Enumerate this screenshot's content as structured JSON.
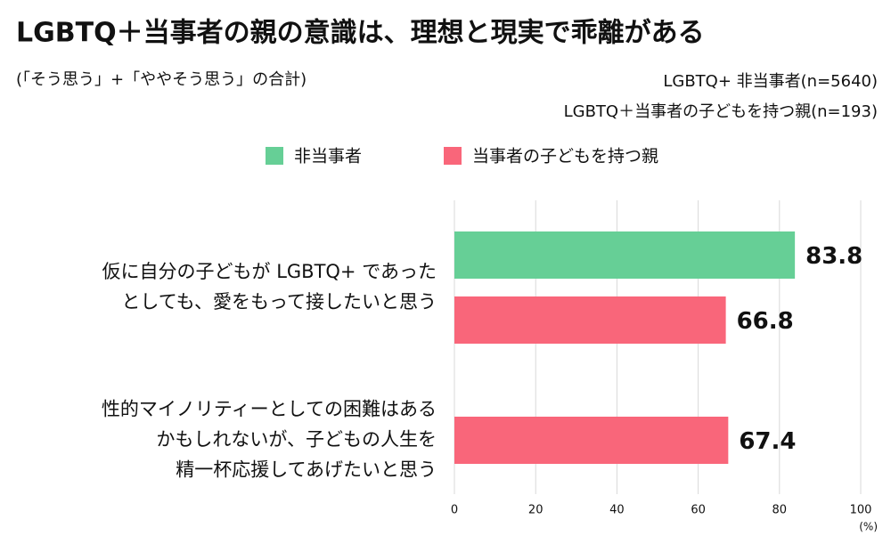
{
  "chart_data": {
    "type": "hbar",
    "title": "LGBTQ＋当事者の親の意識は、理想と現実で乖離がある",
    "subtitle": "(「そう思う」+「ややそう思う」の合計)",
    "notes": [
      "LGBTQ+ 非当事者(n=5640)",
      "LGBTQ＋当事者の子どもを持つ親(n=193)"
    ],
    "categories": [
      [
        "仮に自分の子どもが LGBTQ+ であった",
        "としても、愛をもって接したいと思う"
      ],
      [
        "性的マイノリティーとしての困難はある",
        "かもしれないが、子どもの人生を",
        "精一杯応援してあげたいと思う"
      ]
    ],
    "series": [
      {
        "name": "非当事者",
        "color": "#66cf96",
        "values": [
          83.8,
          null
        ]
      },
      {
        "name": "当事者の子どもを持つ親",
        "color": "#f9667a",
        "values": [
          66.8,
          67.4
        ]
      }
    ],
    "xlim": [
      0,
      100
    ],
    "xticks": [
      0,
      20,
      40,
      60,
      80,
      100
    ],
    "xlabel": "(%)",
    "grid": true
  }
}
